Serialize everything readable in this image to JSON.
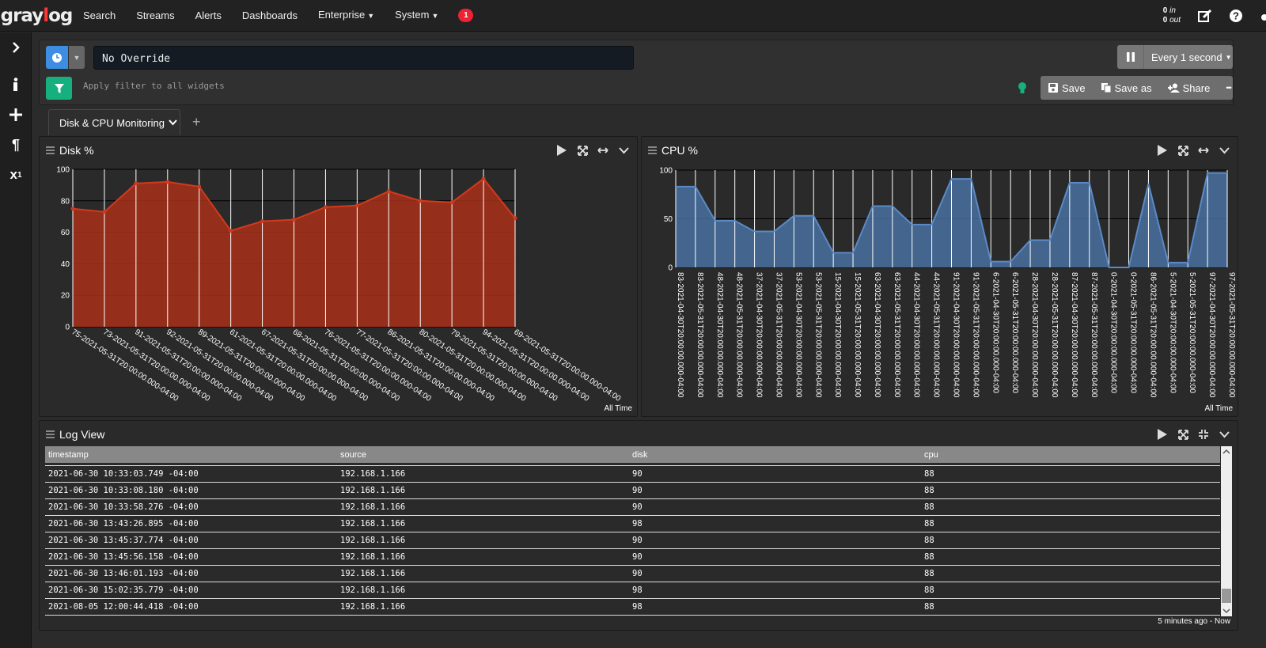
{
  "brand": {
    "logo_text": "graylog"
  },
  "nav": {
    "items": [
      "Search",
      "Streams",
      "Alerts",
      "Dashboards",
      "Enterprise",
      "System"
    ],
    "notification_count": "1"
  },
  "throughput": {
    "in_value": "0",
    "in_label": "in",
    "out_value": "0",
    "out_label": "out"
  },
  "query": {
    "stream_override": "No Override",
    "filter_placeholder": "Apply filter to all widgets",
    "refresh_label": "Every 1 second"
  },
  "actions": {
    "save": "Save",
    "save_as": "Save as",
    "share": "Share",
    "more": "•••"
  },
  "tabs": [
    {
      "label": "Disk & CPU Monitoring"
    }
  ],
  "widgets": {
    "disk_title": "Disk %",
    "cpu_title": "CPU %",
    "log_title": "Log View",
    "all_time": "All Time",
    "last_updated": "5 minutes ago - Now"
  },
  "chart_data": [
    {
      "type": "area",
      "title": "Disk %",
      "ylim": [
        0,
        100
      ],
      "yticks": [
        0,
        20,
        40,
        60,
        80,
        100
      ],
      "color": "#a8301a",
      "categories": [
        "75-2021-05-31T20:00:00.000-04:00",
        "73-2021-05-31T20:00:00.000-04:00",
        "91-2021-05-31T20:00:00.000-04:00",
        "92-2021-05-31T20:00:00.000-04:00",
        "89-2021-05-31T20:00:00.000-04:00",
        "61-2021-05-31T20:00:00.000-04:00",
        "67-2021-05-31T20:00:00.000-04:00",
        "68-2021-05-31T20:00:00.000-04:00",
        "76-2021-05-31T20:00:00.000-04:00",
        "77-2021-05-31T20:00:00.000-04:00",
        "86-2021-05-31T20:00:00.000-04:00",
        "80-2021-05-31T20:00:00.000-04:00",
        "79-2021-05-31T20:00:00.000-04:00",
        "94-2021-05-31T20:00:00.000-04:00",
        "69-2021-05-31T20:00:00.000-04:00"
      ],
      "values": [
        75,
        73,
        91,
        92,
        89,
        61,
        67,
        68,
        76,
        77,
        86,
        80,
        79,
        94,
        69
      ]
    },
    {
      "type": "area",
      "title": "CPU %",
      "ylim": [
        0,
        100
      ],
      "yticks": [
        0,
        50,
        100
      ],
      "color": "#4a74a8",
      "categories": [
        "83-2021-04-30T20:00:00.000-04:00",
        "83-2021-05-31T20:00:00.000-04:00",
        "48-2021-04-30T20:00:00.000-04:00",
        "48-2021-05-31T20:00:00.000-04:00",
        "37-2021-04-30T20:00:00.000-04:00",
        "37-2021-05-31T20:00:00.000-04:00",
        "53-2021-04-30T20:00:00.000-04:00",
        "53-2021-05-31T20:00:00.000-04:00",
        "15-2021-04-30T20:00:00.000-04:00",
        "15-2021-05-31T20:00:00.000-04:00",
        "63-2021-04-30T20:00:00.000-04:00",
        "63-2021-05-31T20:00:00.000-04:00",
        "44-2021-04-30T20:00:00.000-04:00",
        "44-2021-05-31T20:00:00.000-04:00",
        "91-2021-04-30T20:00:00.000-04:00",
        "91-2021-05-31T20:00:00.000-04:00",
        "6-2021-04-30T20:00:00.000-04:00",
        "6-2021-05-31T20:00:00.000-04:00",
        "28-2021-04-30T20:00:00.000-04:00",
        "28-2021-05-31T20:00:00.000-04:00",
        "87-2021-04-30T20:00:00.000-04:00",
        "87-2021-05-31T20:00:00.000-04:00",
        "0-2021-04-30T20:00:00.000-04:00",
        "0-2021-05-31T20:00:00.000-04:00",
        "86-2021-05-31T20:00:00.000-04:00",
        "5-2021-04-30T20:00:00.000-04:00",
        "5-2021-05-31T20:00:00.000-04:00",
        "97-2021-04-30T20:00:00.000-04:00",
        "97-2021-05-31T20:00:00.000-04:00"
      ],
      "values": [
        83,
        83,
        48,
        48,
        37,
        37,
        53,
        53,
        15,
        15,
        63,
        63,
        44,
        44,
        91,
        91,
        6,
        6,
        28,
        28,
        87,
        87,
        0,
        0,
        86,
        5,
        5,
        97,
        97
      ]
    }
  ],
  "log": {
    "columns": [
      "timestamp",
      "source",
      "disk",
      "cpu"
    ],
    "rows": [
      [
        "2021-06-30 10:33:03.749 -04:00",
        "192.168.1.166",
        "90",
        "88"
      ],
      [
        "2021-06-30 10:33:08.180 -04:00",
        "192.168.1.166",
        "90",
        "88"
      ],
      [
        "2021-06-30 10:33:58.276 -04:00",
        "192.168.1.166",
        "90",
        "88"
      ],
      [
        "2021-06-30 13:43:26.895 -04:00",
        "192.168.1.166",
        "98",
        "88"
      ],
      [
        "2021-06-30 13:45:37.774 -04:00",
        "192.168.1.166",
        "90",
        "88"
      ],
      [
        "2021-06-30 13:45:56.158 -04:00",
        "192.168.1.166",
        "90",
        "88"
      ],
      [
        "2021-06-30 13:46:01.193 -04:00",
        "192.168.1.166",
        "90",
        "88"
      ],
      [
        "2021-06-30 15:02:35.779 -04:00",
        "192.168.1.166",
        "98",
        "88"
      ],
      [
        "2021-08-05 12:00:44.418 -04:00",
        "192.168.1.166",
        "98",
        "88"
      ]
    ]
  }
}
